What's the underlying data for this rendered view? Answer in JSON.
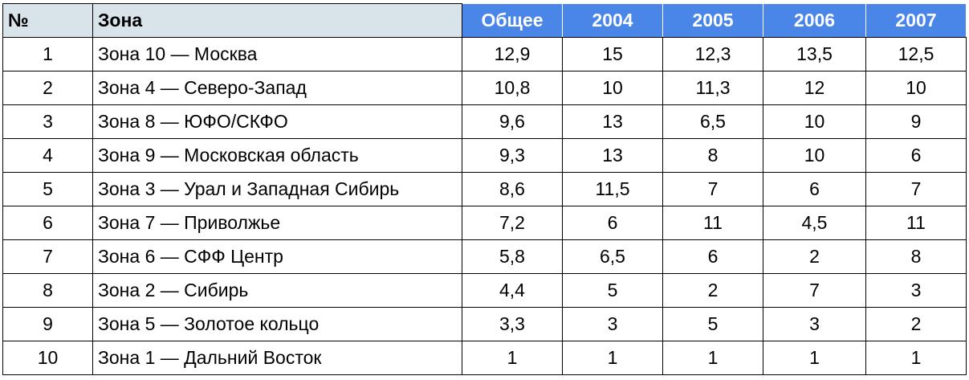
{
  "table": {
    "header": [
      "№",
      "Зона",
      "Общее",
      "2004",
      "2005",
      "2006",
      "2007"
    ],
    "rows": [
      [
        "1",
        "Зона 10 — Москва",
        "12,9",
        "15",
        "12,3",
        "13,5",
        "12,5"
      ],
      [
        "2",
        "Зона 4 — Северо-Запад",
        "10,8",
        "10",
        "11,3",
        "12",
        "10"
      ],
      [
        "3",
        "Зона 8 — ЮФО/СКФО",
        "9,6",
        "13",
        "6,5",
        "10",
        "9"
      ],
      [
        "4",
        "Зона 9 — Московская область",
        "9,3",
        "13",
        "8",
        "10",
        "6"
      ],
      [
        "5",
        "Зона 3 — Урал и Западная Сибирь",
        "8,6",
        "11,5",
        "7",
        "6",
        "7"
      ],
      [
        "6",
        "Зона 7 — Приволжье",
        "7,2",
        "6",
        "11",
        "4,5",
        "11"
      ],
      [
        "7",
        "Зона 6 — СФФ Центр",
        "5,8",
        "6,5",
        "6",
        "2",
        "8"
      ],
      [
        "8",
        "Зона 2 — Сибирь",
        "4,4",
        "5",
        "2",
        "7",
        "3"
      ],
      [
        "9",
        "Зона 5 — Золотое кольцо",
        "3,3",
        "3",
        "5",
        "3",
        "2"
      ],
      [
        "10",
        "Зона 1 — Дальний Восток",
        "1",
        "1",
        "1",
        "1",
        "1"
      ]
    ]
  }
}
